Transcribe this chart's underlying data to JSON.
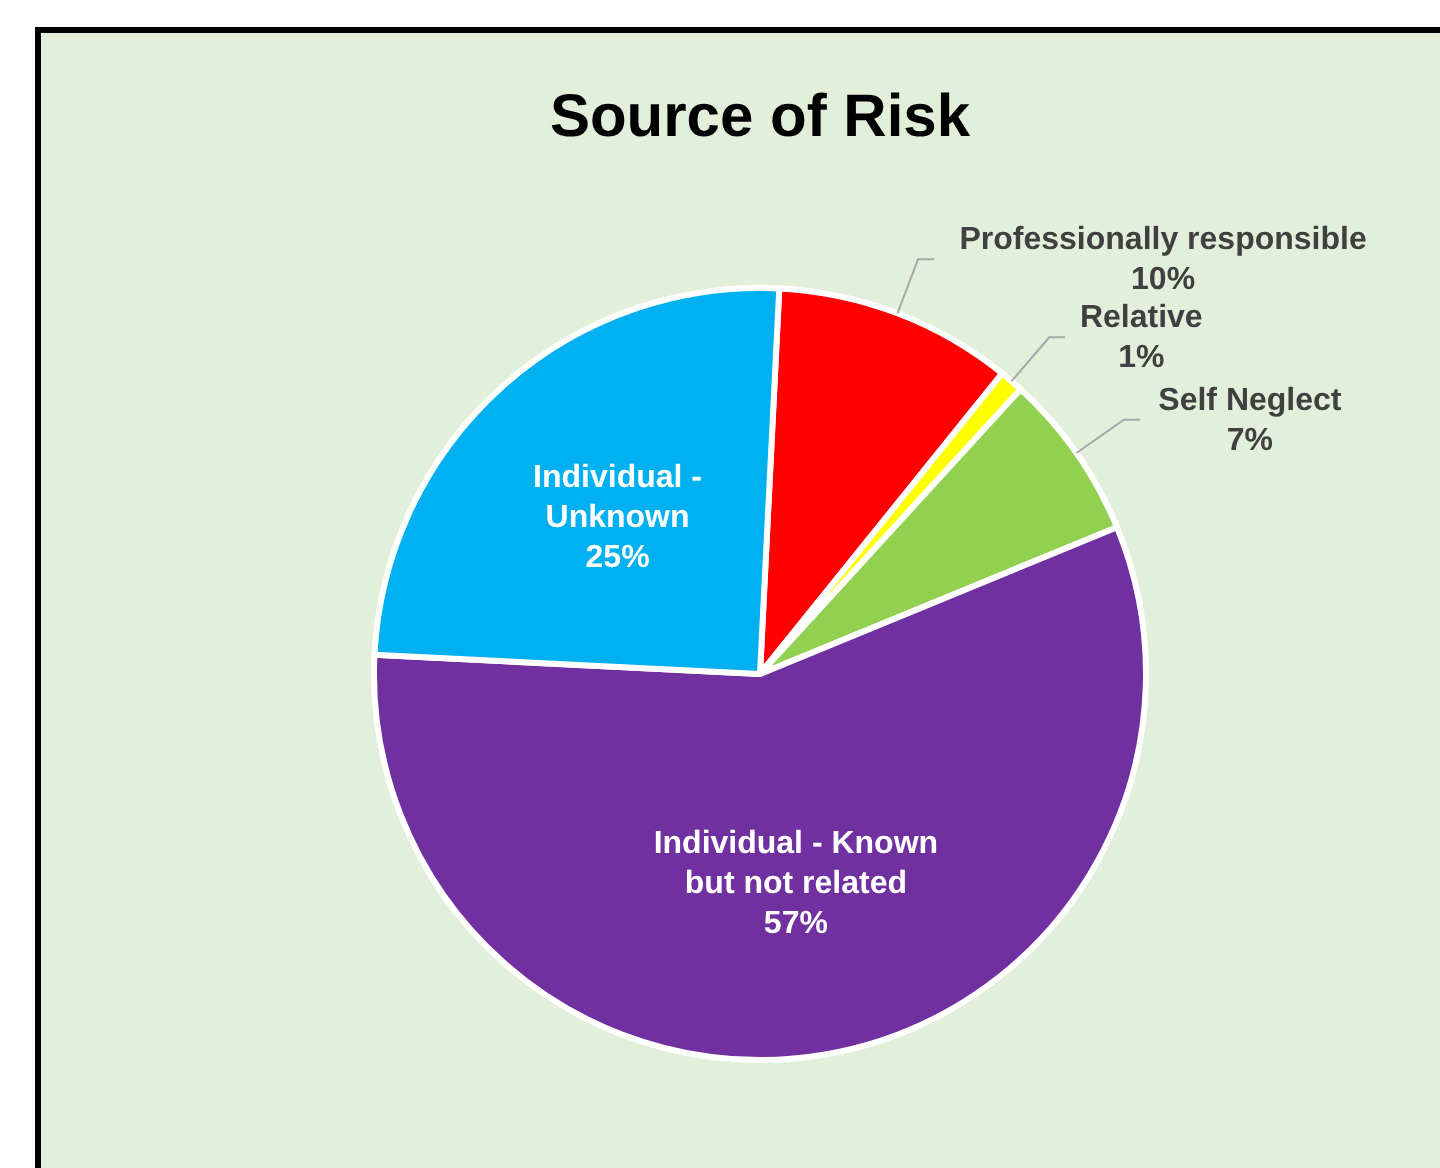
{
  "chart_data": {
    "type": "pie",
    "title": "Source of Risk",
    "categories": [
      "Professionally responsible",
      "Relative",
      "Self Neglect",
      "Individual - Known but not related",
      "Individual - Unknown"
    ],
    "values": [
      10,
      1,
      7,
      57,
      25
    ],
    "colors": [
      "#ff0000",
      "#ffff00",
      "#92d050",
      "#7030a0",
      "#00b0f0"
    ],
    "value_labels": [
      "10%",
      "1%",
      "7%",
      "57%",
      "25%"
    ]
  }
}
